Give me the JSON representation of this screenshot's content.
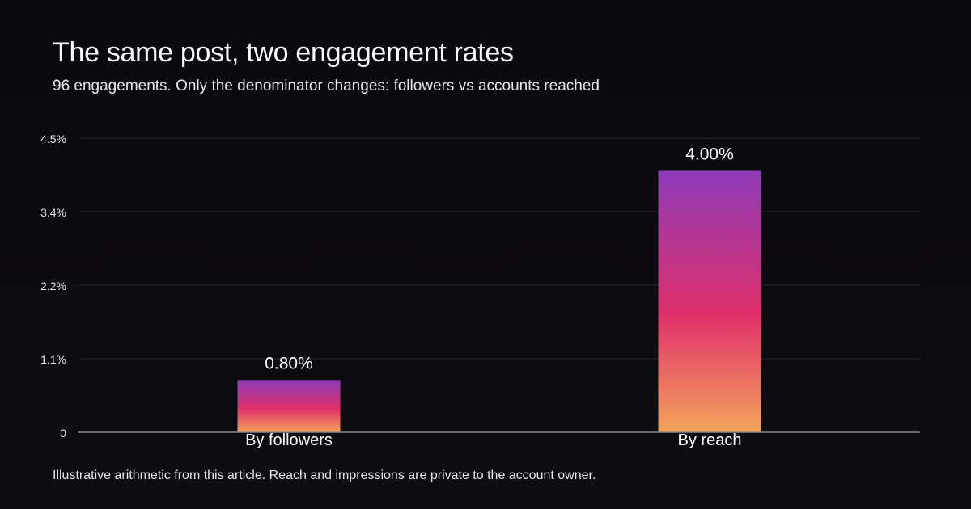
{
  "header": {
    "title": "The same post, two engagement rates",
    "subtitle": "96 engagements. Only the denominator changes: followers vs accounts reached"
  },
  "footer": {
    "note": "Illustrative arithmetic from this article. Reach and impressions are private to the account owner."
  },
  "colors": {
    "background": "#0c0b10",
    "bar_gradient_top": "#8e3bb8",
    "bar_gradient_mid": "#e0306a",
    "bar_gradient_bottom": "#f4a45c",
    "gridline": "#2a2830",
    "baseline": "#8a8890"
  },
  "chart_data": {
    "type": "bar",
    "categories": [
      "By followers",
      "By reach"
    ],
    "values": [
      0.8,
      4.0
    ],
    "value_labels": [
      "0.80%",
      "4.00%"
    ],
    "ylim": [
      0,
      4.5
    ],
    "yticks": [
      0,
      1.125,
      2.25,
      3.375,
      4.5
    ],
    "ytick_labels": [
      "0",
      "1.1%",
      "2.2%",
      "3.4%",
      "4.5%"
    ],
    "grid": true,
    "unit": "%"
  }
}
